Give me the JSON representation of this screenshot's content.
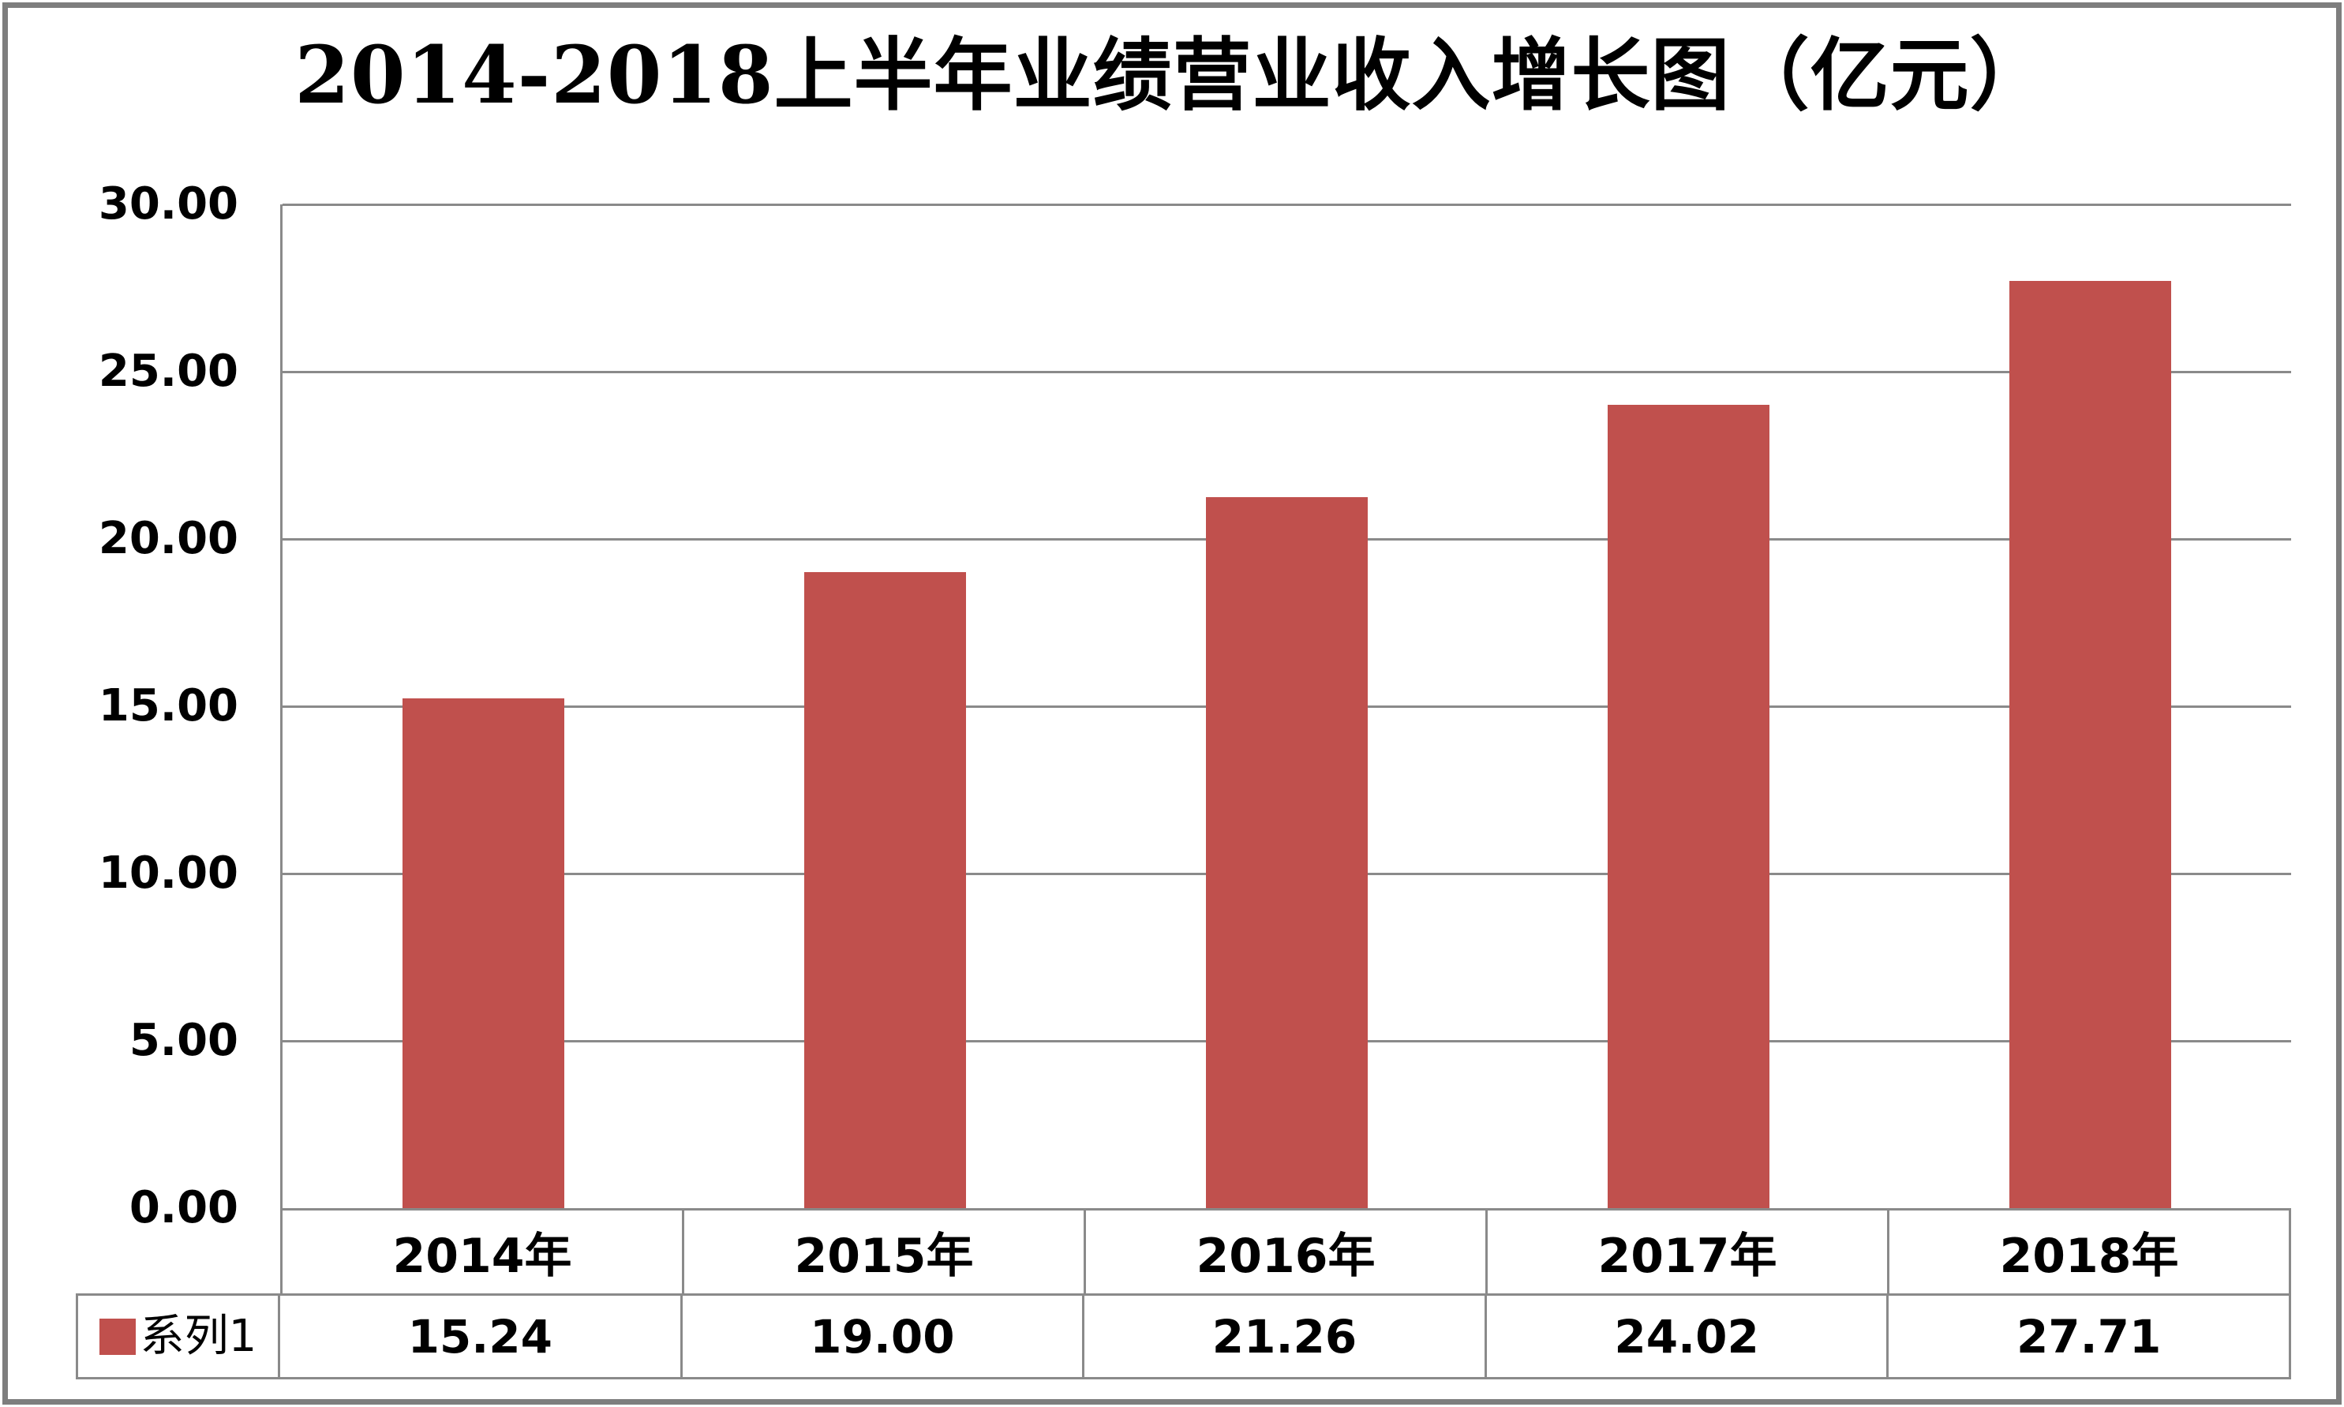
{
  "title": "2014-2018上半年业绩营业收入增长图（亿元）",
  "legend": {
    "series_label": "系列1"
  },
  "y_axis": {
    "tick_labels": [
      "30.00",
      "25.00",
      "20.00",
      "15.00",
      "10.00",
      "5.00",
      "0.00"
    ]
  },
  "x_axis": {
    "categories": [
      "2014年",
      "2015年",
      "2016年",
      "2017年",
      "2018年"
    ]
  },
  "table": {
    "values": [
      "15.24",
      "19.00",
      "21.26",
      "24.02",
      "27.71"
    ]
  },
  "colors": {
    "bar": "#C0504D",
    "gridline": "#8A8A8A",
    "table_border": "#8A8A8A",
    "outer_border": "#7E7E7E",
    "text": "#000000"
  },
  "chart_data": {
    "type": "bar",
    "title": "2014-2018上半年业绩营业收入增长图（亿元）",
    "categories": [
      "2014年",
      "2015年",
      "2016年",
      "2017年",
      "2018年"
    ],
    "series": [
      {
        "name": "系列1",
        "values": [
          15.24,
          19.0,
          21.26,
          24.02,
          27.71
        ]
      }
    ],
    "xlabel": "",
    "ylabel": "",
    "ylim": [
      0,
      30
    ],
    "ytick_step": 5,
    "grid": true,
    "legend_position": "bottom-left-table",
    "bar_color": "#C0504D",
    "value_format": "0.00"
  }
}
